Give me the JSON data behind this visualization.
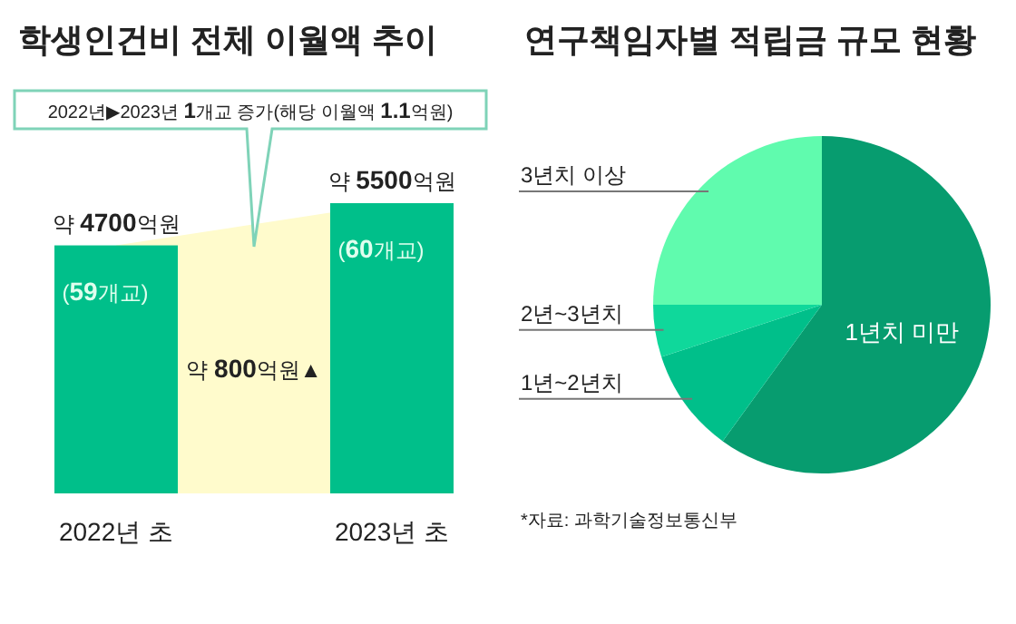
{
  "chart_data": [
    {
      "type": "bar",
      "title": "학생인건비 전체 이월액 추이",
      "categories": [
        "2022년 초",
        "2023년 초"
      ],
      "series": [
        {
          "type": "area",
          "color": "#fffbcc",
          "values": [
            4700,
            5500
          ]
        },
        {
          "color": "#00bf8a",
          "values": [
            4700,
            5500
          ],
          "value_labels": [
            "약 **4700**억원",
            "약 **5500**억원"
          ]
        }
      ],
      "annotations": [
        "(**59**개교)",
        "(**60**개교)",
        "약 **800**억원▲",
        "2022년▶2023년 **1**개교 증가(해당 이월액 **1.1**억원)"
      ]
    },
    {
      "type": "pie",
      "title": "연구책임자별 적립금 규모 현황",
      "categories": [
        "1년치 미만",
        "1년~2년치",
        "2년~3년치",
        "3년치 이상"
      ],
      "values": [
        60,
        10,
        5,
        25
      ],
      "colors": [
        "#079c6f",
        "#00bf8a",
        "#0fd89b",
        "#60fbae"
      ],
      "annotations": [
        "*자료: 과학기술정보통신부"
      ]
    }
  ]
}
